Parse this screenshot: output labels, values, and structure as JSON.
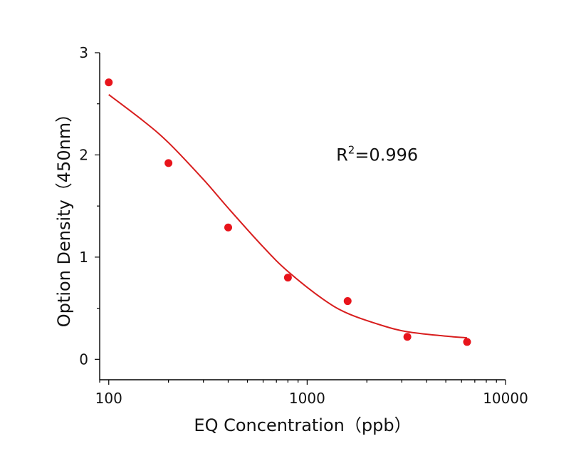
{
  "chart_data": {
    "type": "scatter",
    "title": "",
    "xlabel": "EQ Concentration（ppb）",
    "ylabel": "Option Density（450nm）",
    "x_scale": "log",
    "xlim": [
      90,
      10000
    ],
    "ylim": [
      -0.2,
      3
    ],
    "x_ticks": [
      100,
      1000,
      10000
    ],
    "x_tick_labels": [
      "100",
      "1000",
      "10000"
    ],
    "y_ticks": [
      0,
      1,
      2,
      3
    ],
    "y_tick_labels": [
      "0",
      "1",
      "2",
      "3"
    ],
    "grid": false,
    "legend": "none",
    "series": [
      {
        "kind": "points",
        "color": "#e8141b",
        "x": [
          100,
          200,
          400,
          800,
          1600,
          3200,
          6400
        ],
        "y": [
          2.71,
          1.92,
          1.29,
          0.8,
          0.57,
          0.22,
          0.17
        ]
      },
      {
        "kind": "fit-curve",
        "color": "#d81e1e",
        "x": [
          100,
          150,
          200,
          300,
          400,
          600,
          800,
          1200,
          1600,
          2400,
          3200,
          4800,
          6400
        ],
        "y": [
          2.59,
          2.33,
          2.12,
          1.76,
          1.48,
          1.1,
          0.86,
          0.59,
          0.45,
          0.33,
          0.27,
          0.23,
          0.21
        ]
      }
    ],
    "annotation": {
      "prefix": "R",
      "superscript": "2",
      "suffix": "=0.996",
      "at_x": 1400,
      "at_y": 2.0
    }
  }
}
